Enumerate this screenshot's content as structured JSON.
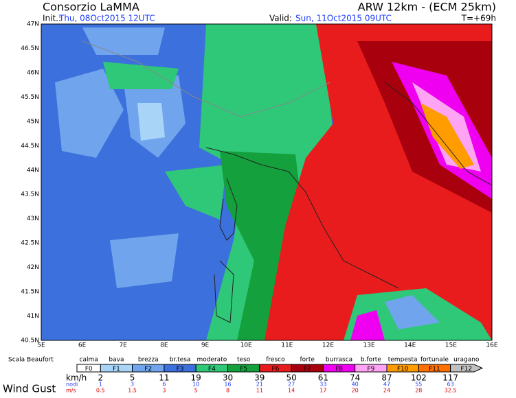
{
  "header": {
    "title": "Consorzio LaMMA",
    "model": "ARW 12km - (ECM 25km)",
    "init_label": "Init.:",
    "init": "Thu, 08Oct2015 12UTC",
    "valid_label": "Valid:",
    "valid": "Sun, 11Oct2015 09UTC",
    "lead": "T=+69h"
  },
  "map": {
    "lat_labels": [
      "47N",
      "46.5N",
      "46N",
      "45.5N",
      "45N",
      "44.5N",
      "44N",
      "43.5N",
      "43N",
      "42.5N",
      "42N",
      "41.5N",
      "41N",
      "40.5N"
    ],
    "lon_labels": [
      "5E",
      "6E",
      "7E",
      "8E",
      "9E",
      "10E",
      "11E",
      "12E",
      "13E",
      "14E",
      "15E",
      "16E"
    ]
  },
  "legend": {
    "scale_label": "Scala Beaufort",
    "title": "Wind Gust",
    "kmh_label": "km/h",
    "knots_label": "nodi",
    "ms_label": "m/s",
    "classes": [
      {
        "name": "calma",
        "code": "F0",
        "color": "#ffffff"
      },
      {
        "name": "bava",
        "code": "F1",
        "color": "#a8d4f8"
      },
      {
        "name": "brezza",
        "code": "F2",
        "color": "#70a4ec"
      },
      {
        "name": "br.tesa",
        "code": "F3",
        "color": "#3c70dc"
      },
      {
        "name": "moderato",
        "code": "F4",
        "color": "#2ec878"
      },
      {
        "name": "teso",
        "code": "F5",
        "color": "#14a03c"
      },
      {
        "name": "fresco",
        "code": "F6",
        "color": "#e81c1c"
      },
      {
        "name": "forte",
        "code": "F7",
        "color": "#a8000c"
      },
      {
        "name": "burrasca",
        "code": "F8",
        "color": "#f000f0"
      },
      {
        "name": "b.forte",
        "code": "F9",
        "color": "#ffa4f4"
      },
      {
        "name": "tempesta",
        "code": "F10",
        "color": "#ff9c00"
      },
      {
        "name": "fortunale",
        "code": "F11",
        "color": "#ff7000"
      },
      {
        "name": "uragano",
        "code": "F12",
        "color": "#c0c0c0"
      }
    ],
    "kmh": [
      "2",
      "5",
      "11",
      "19",
      "30",
      "39",
      "50",
      "61",
      "74",
      "87",
      "102",
      "117"
    ],
    "knots": [
      "1",
      "3",
      "6",
      "10",
      "16",
      "21",
      "27",
      "33",
      "40",
      "47",
      "55",
      "63"
    ],
    "ms": [
      "0.5",
      "1.5",
      "3",
      "5",
      "8",
      "11",
      "14",
      "17",
      "20",
      "24",
      "28",
      "32.5"
    ]
  }
}
